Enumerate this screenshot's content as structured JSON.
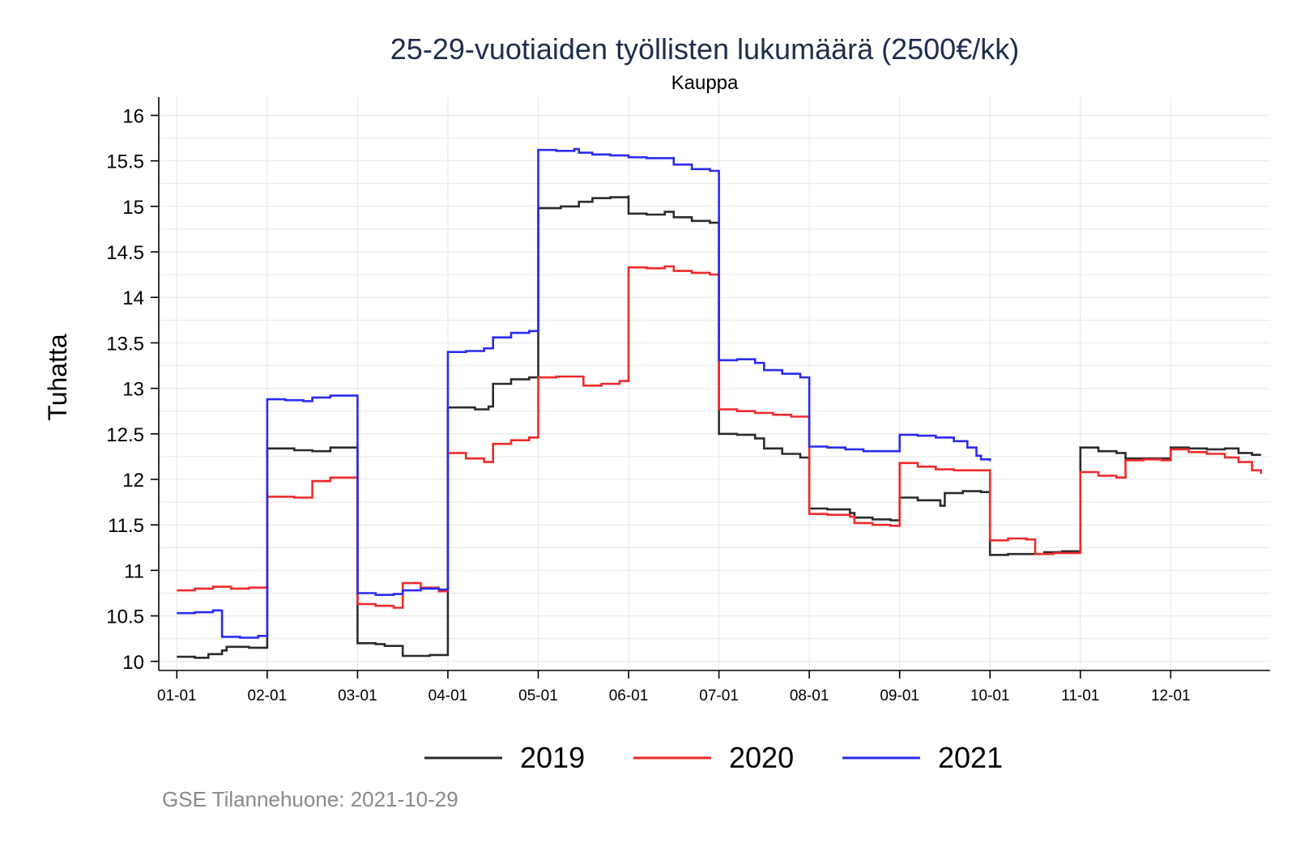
{
  "chart_data": {
    "type": "line",
    "title": "25-29-vuotiaiden työllisten lukumäärä (2500€/kk)",
    "subtitle": "Kauppa",
    "ylabel": "Tuhatta",
    "xlabel": "",
    "ylim": [
      9.9,
      16.2
    ],
    "xlim": [
      0.8,
      13.1
    ],
    "yticks": [
      "10",
      "10.5",
      "11",
      "11.5",
      "12",
      "12.5",
      "13",
      "13.5",
      "14",
      "14.5",
      "15",
      "15.5",
      "16"
    ],
    "xticks": [
      {
        "value": 1,
        "label": "01-01"
      },
      {
        "value": 2,
        "label": "02-01"
      },
      {
        "value": 3,
        "label": "03-01"
      },
      {
        "value": 4,
        "label": "04-01"
      },
      {
        "value": 5,
        "label": "05-01"
      },
      {
        "value": 6,
        "label": "06-01"
      },
      {
        "value": 7,
        "label": "07-01"
      },
      {
        "value": 8,
        "label": "08-01"
      },
      {
        "value": 9,
        "label": "09-01"
      },
      {
        "value": 10,
        "label": "10-01"
      },
      {
        "value": 11,
        "label": "11-01"
      },
      {
        "value": 12,
        "label": "12-01"
      }
    ],
    "series": [
      {
        "name": "2019",
        "color": "#2b2b2b",
        "points": [
          [
            1.0,
            10.05
          ],
          [
            1.2,
            10.04
          ],
          [
            1.35,
            10.08
          ],
          [
            1.5,
            10.12
          ],
          [
            1.55,
            10.16
          ],
          [
            1.8,
            10.15
          ],
          [
            2.0,
            10.16
          ],
          [
            2.0,
            12.34
          ],
          [
            2.3,
            12.32
          ],
          [
            2.5,
            12.31
          ],
          [
            2.7,
            12.35
          ],
          [
            3.0,
            12.37
          ],
          [
            3.0,
            10.2
          ],
          [
            3.2,
            10.19
          ],
          [
            3.3,
            10.17
          ],
          [
            3.5,
            10.06
          ],
          [
            3.8,
            10.07
          ],
          [
            4.0,
            10.09
          ],
          [
            4.0,
            12.79
          ],
          [
            4.3,
            12.77
          ],
          [
            4.45,
            12.8
          ],
          [
            4.5,
            13.05
          ],
          [
            4.7,
            13.1
          ],
          [
            4.9,
            13.12
          ],
          [
            5.0,
            13.18
          ],
          [
            5.0,
            14.98
          ],
          [
            5.25,
            15.0
          ],
          [
            5.45,
            15.05
          ],
          [
            5.6,
            15.09
          ],
          [
            5.8,
            15.1
          ],
          [
            6.0,
            15.12
          ],
          [
            6.0,
            14.92
          ],
          [
            6.2,
            14.91
          ],
          [
            6.4,
            14.94
          ],
          [
            6.5,
            14.88
          ],
          [
            6.7,
            14.84
          ],
          [
            6.9,
            14.82
          ],
          [
            7.0,
            14.82
          ],
          [
            7.0,
            12.5
          ],
          [
            7.2,
            12.49
          ],
          [
            7.4,
            12.45
          ],
          [
            7.5,
            12.34
          ],
          [
            7.7,
            12.28
          ],
          [
            7.9,
            12.24
          ],
          [
            8.0,
            12.24
          ],
          [
            8.0,
            11.68
          ],
          [
            8.2,
            11.67
          ],
          [
            8.45,
            11.63
          ],
          [
            8.5,
            11.58
          ],
          [
            8.7,
            11.56
          ],
          [
            8.9,
            11.55
          ],
          [
            9.0,
            11.55
          ],
          [
            9.0,
            11.8
          ],
          [
            9.2,
            11.77
          ],
          [
            9.45,
            11.71
          ],
          [
            9.5,
            11.85
          ],
          [
            9.7,
            11.87
          ],
          [
            9.9,
            11.86
          ],
          [
            10.0,
            11.84
          ],
          [
            10.0,
            11.17
          ],
          [
            10.2,
            11.18
          ],
          [
            10.4,
            11.18
          ],
          [
            10.6,
            11.2
          ],
          [
            10.8,
            11.21
          ],
          [
            11.0,
            11.19
          ],
          [
            11.0,
            12.35
          ],
          [
            11.2,
            12.31
          ],
          [
            11.4,
            12.29
          ],
          [
            11.5,
            12.23
          ],
          [
            11.7,
            12.23
          ],
          [
            11.9,
            12.23
          ],
          [
            12.0,
            12.25
          ],
          [
            12.0,
            12.35
          ],
          [
            12.2,
            12.34
          ],
          [
            12.4,
            12.33
          ],
          [
            12.6,
            12.34
          ],
          [
            12.75,
            12.29
          ],
          [
            12.9,
            12.27
          ],
          [
            13.0,
            12.27
          ]
        ]
      },
      {
        "name": "2020",
        "color": "#f02a2a",
        "points": [
          [
            1.0,
            10.78
          ],
          [
            1.2,
            10.8
          ],
          [
            1.4,
            10.82
          ],
          [
            1.6,
            10.8
          ],
          [
            1.8,
            10.81
          ],
          [
            2.0,
            10.83
          ],
          [
            2.0,
            11.81
          ],
          [
            2.3,
            11.8
          ],
          [
            2.5,
            11.79
          ],
          [
            2.5,
            11.98
          ],
          [
            2.7,
            12.02
          ],
          [
            3.0,
            12.05
          ],
          [
            3.0,
            10.63
          ],
          [
            3.2,
            10.61
          ],
          [
            3.4,
            10.59
          ],
          [
            3.5,
            10.86
          ],
          [
            3.7,
            10.81
          ],
          [
            3.9,
            10.77
          ],
          [
            4.0,
            10.76
          ],
          [
            4.0,
            12.29
          ],
          [
            4.2,
            12.23
          ],
          [
            4.4,
            12.19
          ],
          [
            4.5,
            12.39
          ],
          [
            4.7,
            12.43
          ],
          [
            4.9,
            12.46
          ],
          [
            5.0,
            12.47
          ],
          [
            5.0,
            13.12
          ],
          [
            5.2,
            13.13
          ],
          [
            5.4,
            13.13
          ],
          [
            5.5,
            13.03
          ],
          [
            5.7,
            13.05
          ],
          [
            5.9,
            13.08
          ],
          [
            6.0,
            13.08
          ],
          [
            6.0,
            14.33
          ],
          [
            6.2,
            14.32
          ],
          [
            6.4,
            14.34
          ],
          [
            6.5,
            14.29
          ],
          [
            6.7,
            14.27
          ],
          [
            6.9,
            14.25
          ],
          [
            7.0,
            14.28
          ],
          [
            7.0,
            12.77
          ],
          [
            7.2,
            12.75
          ],
          [
            7.4,
            12.73
          ],
          [
            7.6,
            12.71
          ],
          [
            7.8,
            12.69
          ],
          [
            8.0,
            12.68
          ],
          [
            8.0,
            11.62
          ],
          [
            8.2,
            11.61
          ],
          [
            8.45,
            11.59
          ],
          [
            8.5,
            11.52
          ],
          [
            8.7,
            11.5
          ],
          [
            8.9,
            11.49
          ],
          [
            9.0,
            11.49
          ],
          [
            9.0,
            12.18
          ],
          [
            9.2,
            12.14
          ],
          [
            9.4,
            12.11
          ],
          [
            9.6,
            12.1
          ],
          [
            9.8,
            12.1
          ],
          [
            10.0,
            12.09
          ],
          [
            10.0,
            11.33
          ],
          [
            10.2,
            11.35
          ],
          [
            10.4,
            11.34
          ],
          [
            10.5,
            11.18
          ],
          [
            10.7,
            11.19
          ],
          [
            10.9,
            11.19
          ],
          [
            11.0,
            11.19
          ],
          [
            11.0,
            12.08
          ],
          [
            11.2,
            12.04
          ],
          [
            11.4,
            12.02
          ],
          [
            11.5,
            12.21
          ],
          [
            11.7,
            12.22
          ],
          [
            11.9,
            12.21
          ],
          [
            12.0,
            12.24
          ],
          [
            12.0,
            12.33
          ],
          [
            12.2,
            12.3
          ],
          [
            12.4,
            12.28
          ],
          [
            12.6,
            12.24
          ],
          [
            12.75,
            12.19
          ],
          [
            12.9,
            12.1
          ],
          [
            13.0,
            12.06
          ]
        ]
      },
      {
        "name": "2021",
        "color": "#2b2bf0",
        "points": [
          [
            1.0,
            10.53
          ],
          [
            1.2,
            10.54
          ],
          [
            1.4,
            10.56
          ],
          [
            1.5,
            10.57
          ],
          [
            1.5,
            10.27
          ],
          [
            1.7,
            10.26
          ],
          [
            1.9,
            10.28
          ],
          [
            2.0,
            10.29
          ],
          [
            2.0,
            12.88
          ],
          [
            2.2,
            12.87
          ],
          [
            2.4,
            12.86
          ],
          [
            2.5,
            12.9
          ],
          [
            2.7,
            12.92
          ],
          [
            3.0,
            12.92
          ],
          [
            3.0,
            10.75
          ],
          [
            3.2,
            10.73
          ],
          [
            3.4,
            10.74
          ],
          [
            3.5,
            10.78
          ],
          [
            3.7,
            10.8
          ],
          [
            3.9,
            10.79
          ],
          [
            4.0,
            10.8
          ],
          [
            4.0,
            13.4
          ],
          [
            4.2,
            13.41
          ],
          [
            4.4,
            13.44
          ],
          [
            4.5,
            13.56
          ],
          [
            4.7,
            13.61
          ],
          [
            4.9,
            13.63
          ],
          [
            5.0,
            13.64
          ],
          [
            5.0,
            15.62
          ],
          [
            5.2,
            15.61
          ],
          [
            5.4,
            15.63
          ],
          [
            5.45,
            15.59
          ],
          [
            5.6,
            15.57
          ],
          [
            5.8,
            15.56
          ],
          [
            6.0,
            15.55
          ],
          [
            6.0,
            15.54
          ],
          [
            6.2,
            15.53
          ],
          [
            6.4,
            15.53
          ],
          [
            6.5,
            15.46
          ],
          [
            6.7,
            15.41
          ],
          [
            6.9,
            15.39
          ],
          [
            7.0,
            15.4
          ],
          [
            7.0,
            13.31
          ],
          [
            7.2,
            13.32
          ],
          [
            7.4,
            13.28
          ],
          [
            7.5,
            13.2
          ],
          [
            7.7,
            13.16
          ],
          [
            7.9,
            13.12
          ],
          [
            8.0,
            13.12
          ],
          [
            8.0,
            12.36
          ],
          [
            8.2,
            12.35
          ],
          [
            8.4,
            12.33
          ],
          [
            8.6,
            12.31
          ],
          [
            8.8,
            12.31
          ],
          [
            9.0,
            12.31
          ],
          [
            9.0,
            12.49
          ],
          [
            9.2,
            12.48
          ],
          [
            9.4,
            12.46
          ],
          [
            9.6,
            12.42
          ],
          [
            9.75,
            12.35
          ],
          [
            9.85,
            12.26
          ],
          [
            9.9,
            12.22
          ],
          [
            10.0,
            12.2
          ]
        ]
      }
    ],
    "legend": [
      "2019",
      "2020",
      "2021"
    ],
    "legend_position": "bottom",
    "caption": "GSE Tilannehuone: 2021-10-29"
  }
}
